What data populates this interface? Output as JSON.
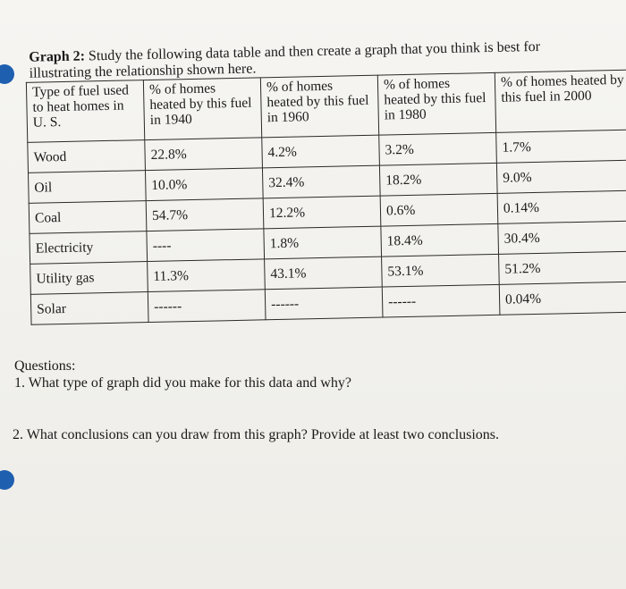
{
  "graph_heading": {
    "label": "Graph 2:",
    "instruction": "Study the following data table and then create a graph that you think is best for illustrating the relationship shown here."
  },
  "table": {
    "headers": [
      "Type of fuel used to heat homes in U. S.",
      "% of homes heated by this fuel in 1940",
      "% of homes heated by this fuel in 1960",
      "% of homes heated by this fuel in 1980",
      "% of homes heated by this fuel in 2000"
    ],
    "rows": [
      [
        "Wood",
        "22.8%",
        "4.2%",
        "3.2%",
        "1.7%"
      ],
      [
        "Oil",
        "10.0%",
        "32.4%",
        "18.2%",
        "9.0%"
      ],
      [
        "Coal",
        "54.7%",
        "12.2%",
        "0.6%",
        "0.14%"
      ],
      [
        "Electricity",
        "----",
        "1.8%",
        "18.4%",
        "30.4%"
      ],
      [
        "Utility gas",
        "11.3%",
        "43.1%",
        "53.1%",
        "51.2%"
      ],
      [
        "Solar",
        "------",
        "------",
        "------",
        "0.04%"
      ]
    ]
  },
  "questions": {
    "heading": "Questions:",
    "q1": "1. What type of graph did you make for this data and why?",
    "q2": "2. What conclusions can you draw from this graph? Provide at least two conclusions."
  },
  "colors": {
    "binder_hole": "#1f5fb0"
  }
}
